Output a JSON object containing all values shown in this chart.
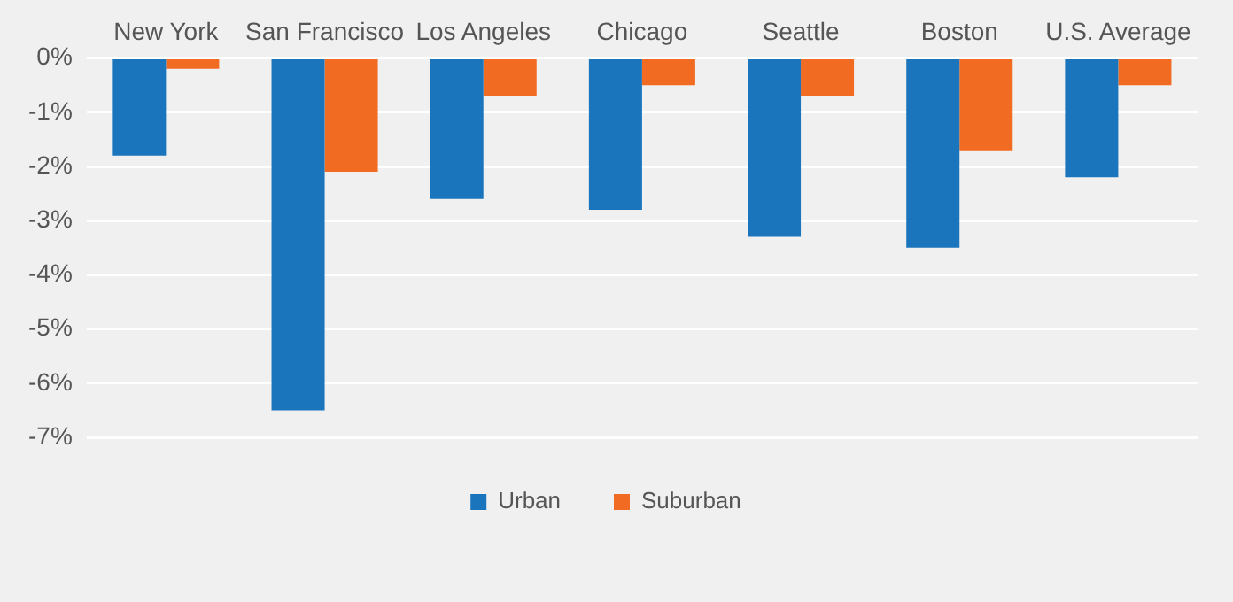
{
  "chart_data": {
    "type": "bar",
    "categories": [
      "New York",
      "San Francisco",
      "Los Angeles",
      "Chicago",
      "Seattle",
      "Boston",
      "U.S. Average"
    ],
    "series": [
      {
        "name": "Urban",
        "color": "#1a75bc",
        "values": [
          -1.8,
          -6.5,
          -2.6,
          -2.8,
          -3.3,
          -3.5,
          -2.2
        ]
      },
      {
        "name": "Suburban",
        "color": "#f26b23",
        "values": [
          -0.2,
          -2.1,
          -0.7,
          -0.5,
          -0.7,
          -1.7,
          -0.5
        ]
      }
    ],
    "ylim": [
      -7,
      0
    ],
    "yticks": [
      {
        "value": 0,
        "label": "0%"
      },
      {
        "value": -1,
        "label": "-1%"
      },
      {
        "value": -2,
        "label": "-2%"
      },
      {
        "value": -3,
        "label": "-3%"
      },
      {
        "value": -4,
        "label": "-4%"
      },
      {
        "value": -5,
        "label": "-5%"
      },
      {
        "value": -6,
        "label": "-6%"
      },
      {
        "value": -7,
        "label": "-7%"
      }
    ],
    "grid": "y",
    "legend": "bottom"
  }
}
